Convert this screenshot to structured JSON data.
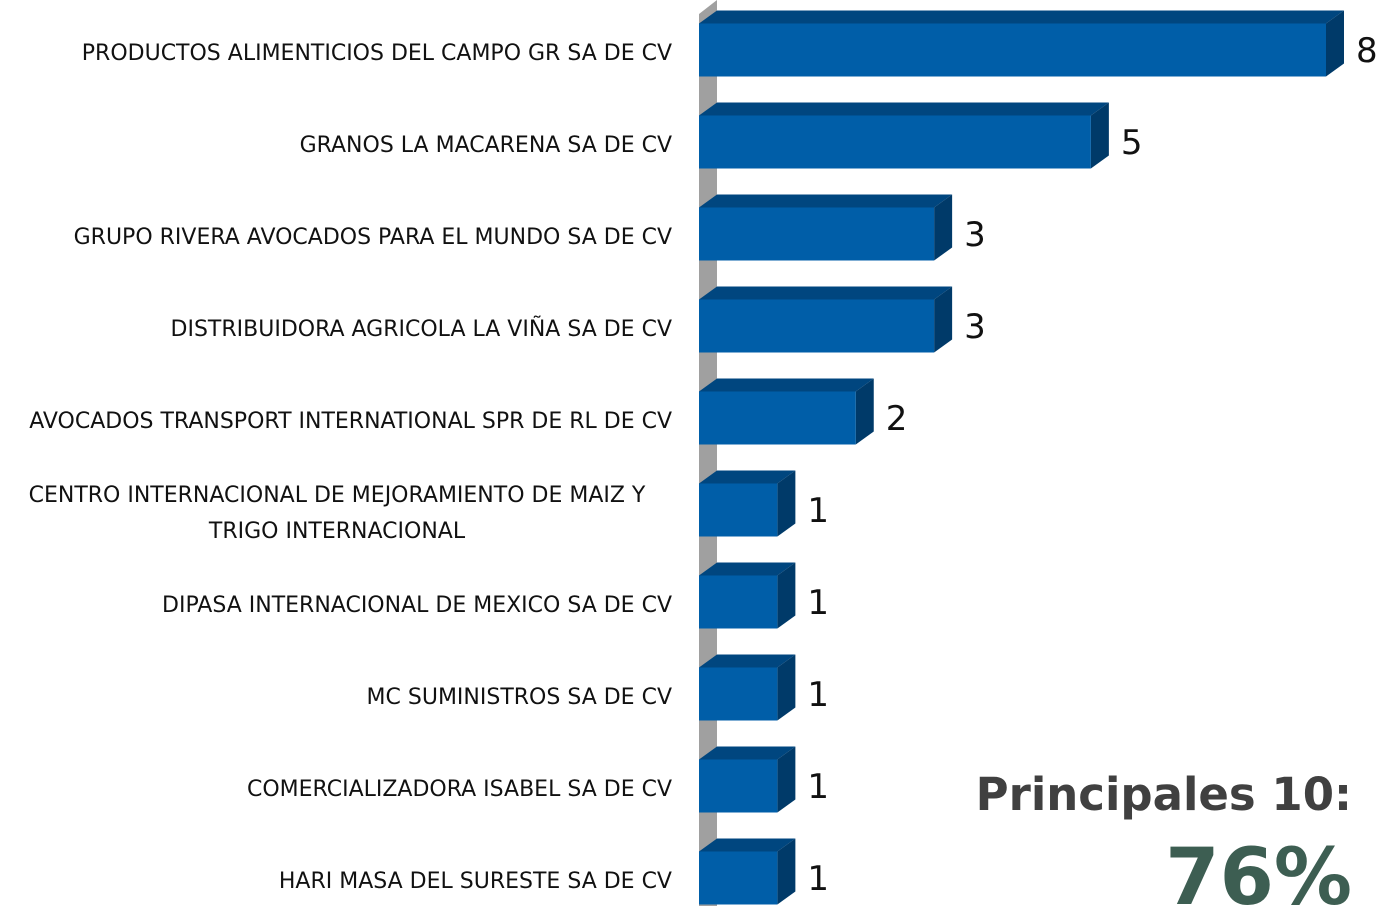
{
  "chart_data": {
    "type": "bar",
    "orientation": "horizontal",
    "categories": [
      "PRODUCTOS ALIMENTICIOS DEL CAMPO GR SA DE CV",
      "GRANOS LA MACARENA SA DE CV",
      "GRUPO RIVERA AVOCADOS PARA EL MUNDO SA DE CV",
      "DISTRIBUIDORA AGRICOLA LA VIÑA SA DE CV",
      "AVOCADOS TRANSPORT INTERNATIONAL SPR DE RL DE CV",
      "CENTRO INTERNACIONAL DE MEJORAMIENTO DE MAIZ Y TRIGO INTERNACIONAL",
      "DIPASA INTERNACIONAL DE MEXICO SA DE CV",
      "MC SUMINISTROS SA DE CV",
      "COMERCIALIZADORA ISABEL SA DE CV",
      "HARI MASA DEL SURESTE SA DE CV"
    ],
    "values": [
      8,
      5,
      3,
      3,
      2,
      1,
      1,
      1,
      1,
      1
    ],
    "color": "#005ea8",
    "xlim": [
      0,
      8
    ],
    "annotations": [
      "Principales 10:",
      "76%"
    ]
  }
}
